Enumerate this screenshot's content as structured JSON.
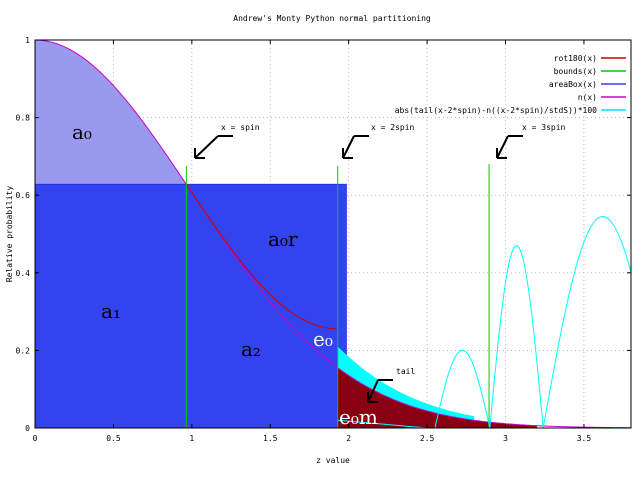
{
  "chart_data": {
    "type": "area",
    "title": "Andrew's Monty Python normal partitioning",
    "xlabel": "z value",
    "ylabel": "Relative probability",
    "xlim": [
      0,
      3.8
    ],
    "ylim": [
      0,
      1
    ],
    "xticks": [
      0,
      0.5,
      1,
      1.5,
      2,
      2.5,
      3,
      3.5
    ],
    "xtick_labels": [
      "0",
      "0.5",
      "1",
      "1.5",
      "2",
      "2.5",
      "3",
      "3.5"
    ],
    "yticks": [
      0,
      0.2,
      0.4,
      0.6,
      0.8,
      1
    ],
    "ytick_labels": [
      "0",
      "0.2",
      "0.4",
      "0.6",
      "0.8",
      "1"
    ],
    "grid": true,
    "legend_position": "top-right",
    "spin": 0.965,
    "box_height": 0.628,
    "box_right": 1.985,
    "series": [
      {
        "name": "rot180(x)",
        "color": "#cc0000"
      },
      {
        "name": "bounds(x)",
        "color": "#00cc00"
      },
      {
        "name": "areaBox(x)",
        "color": "#3344ee"
      },
      {
        "name": "n(x)",
        "color": "#cc00cc"
      },
      {
        "name": "abs(tail(x-2*spin)-n((x-2*spin)/stdS))*100",
        "color": "#00e5ee"
      }
    ],
    "annotations": [
      {
        "text": "x = spin",
        "x": 0.965
      },
      {
        "text": "x = 2spin",
        "x": 1.93
      },
      {
        "text": "x = 3spin",
        "x": 2.895
      },
      {
        "text": "tail",
        "x": 2.12
      }
    ],
    "region_labels": {
      "a0": "a₀",
      "a0r": "a₀r",
      "a1": "a₁",
      "a2": "a₂",
      "e0": "e₀",
      "e0m": "e₀m"
    },
    "colors": {
      "area_light": "#9999ee",
      "area_box": "#3344ee",
      "dark_red": "#880011",
      "cyan": "#00ffff",
      "magenta": "#cc00cc"
    }
  }
}
